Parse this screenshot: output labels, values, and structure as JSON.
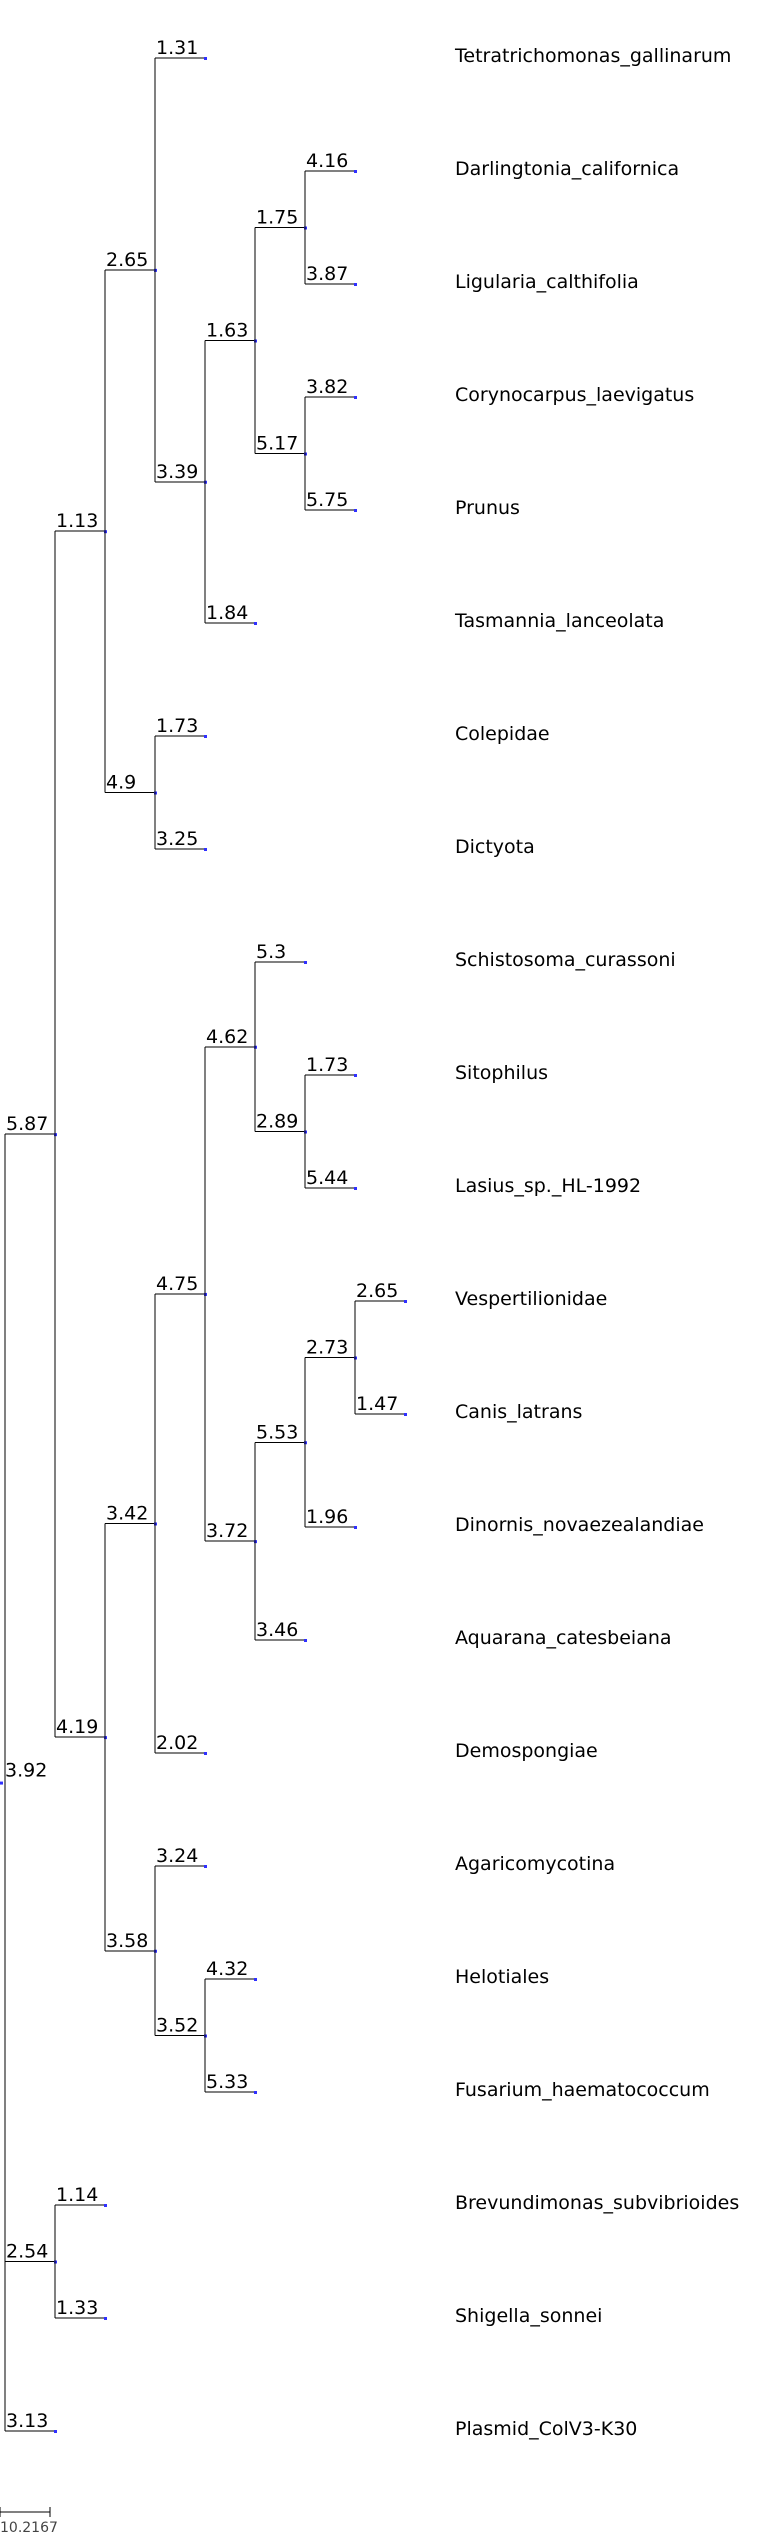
{
  "tree": {
    "label": "3.92",
    "children": [
      {
        "label": "5.87",
        "children": [
          {
            "label": "1.13",
            "children": [
              {
                "label": "2.65",
                "children": [
                  {
                    "label": "1.31",
                    "leaf": "Tetratrichomonas_gallinarum"
                  },
                  {
                    "label": "3.39",
                    "children": [
                      {
                        "label": "1.63",
                        "children": [
                          {
                            "label": "1.75",
                            "children": [
                              {
                                "label": "4.16",
                                "leaf": "Darlingtonia_californica"
                              },
                              {
                                "label": "3.87",
                                "leaf": "Ligularia_calthifolia"
                              }
                            ]
                          },
                          {
                            "label": "5.17",
                            "children": [
                              {
                                "label": "3.82",
                                "leaf": "Corynocarpus_laevigatus"
                              },
                              {
                                "label": "5.75",
                                "leaf": "Prunus"
                              }
                            ]
                          }
                        ]
                      },
                      {
                        "label": "1.84",
                        "leaf": "Tasmannia_lanceolata"
                      }
                    ]
                  }
                ]
              },
              {
                "label": "4.9",
                "children": [
                  {
                    "label": "1.73",
                    "leaf": "Colepidae"
                  },
                  {
                    "label": "3.25",
                    "leaf": "Dictyota"
                  }
                ]
              }
            ]
          },
          {
            "label": "4.19",
            "children": [
              {
                "label": "3.42",
                "children": [
                  {
                    "label": "4.75",
                    "children": [
                      {
                        "label": "4.62",
                        "children": [
                          {
                            "label": "5.3",
                            "leaf": "Schistosoma_curassoni"
                          },
                          {
                            "label": "2.89",
                            "children": [
                              {
                                "label": "1.73",
                                "leaf": "Sitophilus"
                              },
                              {
                                "label": "5.44",
                                "leaf": "Lasius_sp._HL-1992"
                              }
                            ]
                          }
                        ]
                      },
                      {
                        "label": "3.72",
                        "children": [
                          {
                            "label": "5.53",
                            "children": [
                              {
                                "label": "2.73",
                                "children": [
                                  {
                                    "label": "2.65",
                                    "leaf": "Vespertilionidae"
                                  },
                                  {
                                    "label": "1.47",
                                    "leaf": "Canis_latrans"
                                  }
                                ]
                              },
                              {
                                "label": "1.96",
                                "leaf": "Dinornis_novaezealandiae"
                              }
                            ]
                          },
                          {
                            "label": "3.46",
                            "leaf": "Aquarana_catesbeiana"
                          }
                        ]
                      }
                    ]
                  },
                  {
                    "label": "2.02",
                    "leaf": "Demospongiae"
                  }
                ]
              },
              {
                "label": "3.58",
                "children": [
                  {
                    "label": "3.24",
                    "leaf": "Agaricomycotina"
                  },
                  {
                    "label": "3.52",
                    "children": [
                      {
                        "label": "4.32",
                        "leaf": "Helotiales"
                      },
                      {
                        "label": "5.33",
                        "leaf": "Fusarium_haematococcum"
                      }
                    ]
                  }
                ]
              }
            ]
          }
        ]
      },
      {
        "label": "2.54",
        "children": [
          {
            "label": "1.14",
            "leaf": "Brevundimonas_subvibrioides"
          },
          {
            "label": "1.33",
            "leaf": "Shigella_sonnei"
          }
        ]
      },
      {
        "label": "3.13",
        "leaf": "Plasmid_ColV3-K30"
      }
    ]
  },
  "scale_bar": {
    "label": "10.2167"
  },
  "colors": {
    "edge": "#000000",
    "node_dot": "#3030ff",
    "text": "#000000"
  }
}
